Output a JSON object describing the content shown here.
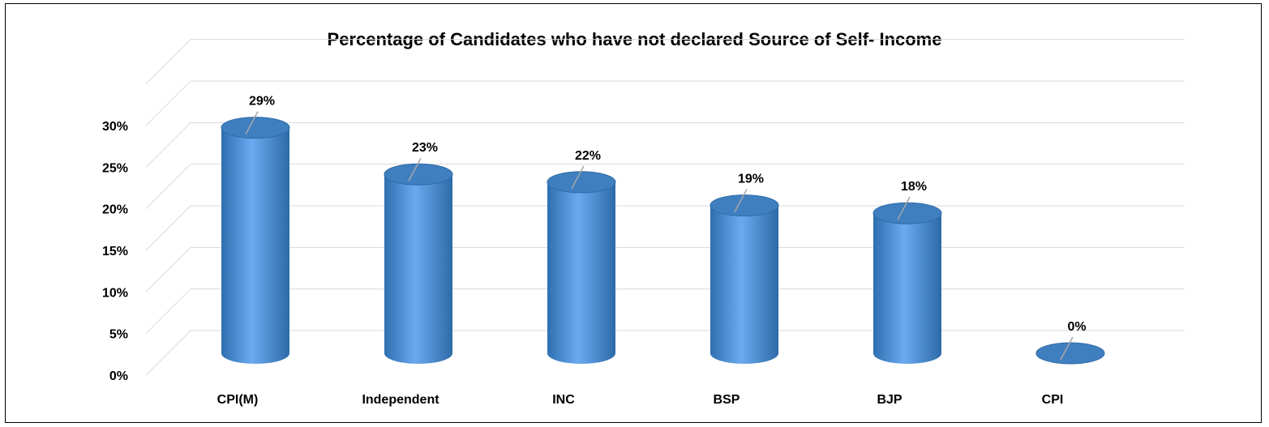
{
  "chart_data": {
    "type": "bar",
    "title": "Percentage of Candidates who have not declared Source of Self- Income",
    "categories": [
      "CPI(M)",
      "Independent",
      "INC",
      "BSP",
      "BJP",
      "CPI"
    ],
    "values": [
      29,
      23,
      22,
      19,
      18,
      0
    ],
    "data_labels": [
      "29%",
      "23%",
      "22%",
      "19%",
      "18%",
      "0%"
    ],
    "y_ticks": [
      "0%",
      "5%",
      "10%",
      "15%",
      "20%",
      "25%",
      "30%"
    ],
    "ylim": [
      0,
      30
    ],
    "grid": true,
    "legend": false,
    "bar_color": "#5b9bd5"
  }
}
